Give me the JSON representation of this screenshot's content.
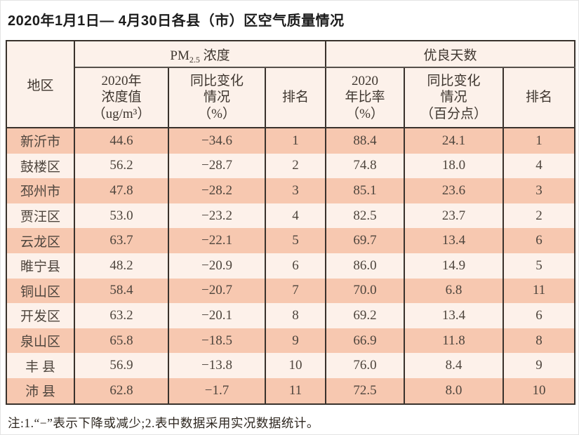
{
  "title": "2020年1月1日— 4月30日各县（市）区空气质量情况",
  "colors": {
    "row_odd": "#f7c8b0",
    "row_even": "#fdf1ea",
    "header_bg": "#fcf1ea",
    "table_border": "#39322c"
  },
  "table": {
    "region_header": "地区",
    "pm25_group": {
      "prefix": "PM",
      "sub": "2.5",
      "suffix": " 浓度"
    },
    "good_days_group": "优良天数",
    "sub_headers": [
      "2020年\n浓度值\n（ug/m³）",
      "同比变化\n情况\n（%）",
      "排名",
      "2020\n年比率\n（%）",
      "同比变化\n情况\n（百分点）",
      "排名"
    ]
  },
  "chart_data": {
    "type": "table",
    "title": "2020年1月1日— 4月30日各县（市）区空气质量情况",
    "column_groups": [
      "地区",
      "PM2.5浓度",
      "优良天数"
    ],
    "columns": [
      "地区",
      "PM2.5浓度 2020年浓度值（ug/m³）",
      "PM2.5浓度 同比变化情况（%）",
      "PM2.5浓度 排名",
      "优良天数 2020年比率（%）",
      "优良天数 同比变化情况（百分点）",
      "优良天数 排名"
    ],
    "rows": [
      [
        "新沂市",
        "44.6",
        "−34.6",
        "1",
        "88.4",
        "24.1",
        "1"
      ],
      [
        "鼓楼区",
        "56.2",
        "−28.7",
        "2",
        "74.8",
        "18.0",
        "4"
      ],
      [
        "邳州市",
        "47.8",
        "−28.2",
        "3",
        "85.1",
        "23.6",
        "3"
      ],
      [
        "贾汪区",
        "53.0",
        "−23.2",
        "4",
        "82.5",
        "23.7",
        "2"
      ],
      [
        "云龙区",
        "63.7",
        "−22.1",
        "5",
        "69.7",
        "13.4",
        "6"
      ],
      [
        "睢宁县",
        "48.2",
        "−20.9",
        "6",
        "86.0",
        "14.9",
        "5"
      ],
      [
        "铜山区",
        "58.4",
        "−20.7",
        "7",
        "70.0",
        "6.8",
        "11"
      ],
      [
        "开发区",
        "63.2",
        "−20.1",
        "8",
        "69.2",
        "13.4",
        "6"
      ],
      [
        "泉山区",
        "65.8",
        "−18.5",
        "9",
        "66.9",
        "11.8",
        "8"
      ],
      [
        "丰 县",
        "56.9",
        "−13.8",
        "10",
        "76.0",
        "8.4",
        "9"
      ],
      [
        "沛 县",
        "62.8",
        "−1.7",
        "11",
        "72.5",
        "8.0",
        "10"
      ]
    ]
  },
  "footnote": "注:1.“−”表示下降或减少;2.表中数据采用实况数据统计。"
}
